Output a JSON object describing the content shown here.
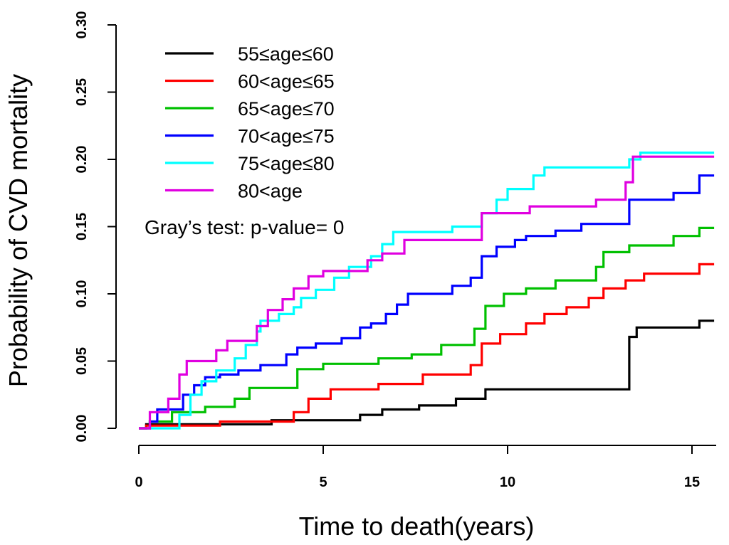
{
  "chart_data": {
    "type": "line",
    "step": true,
    "title": "",
    "xlabel": "Time to death(years)",
    "ylabel": "Probability of CVD mortality",
    "xlim": [
      0,
      15.6
    ],
    "ylim": [
      0,
      0.3
    ],
    "x_ticks": [
      {
        "value": 0,
        "label": "0"
      },
      {
        "value": 5,
        "label": "5"
      },
      {
        "value": 10,
        "label": "10"
      },
      {
        "value": 15,
        "label": "15"
      }
    ],
    "y_ticks": [
      {
        "value": 0.0,
        "label": "0.00"
      },
      {
        "value": 0.05,
        "label": "0.05"
      },
      {
        "value": 0.1,
        "label": "0.10"
      },
      {
        "value": 0.15,
        "label": "0.15"
      },
      {
        "value": 0.2,
        "label": "0.20"
      },
      {
        "value": 0.25,
        "label": "0.25"
      },
      {
        "value": 0.3,
        "label": "0.30"
      }
    ],
    "legend_position": "top-left",
    "annotation": "Gray’s test: p-value= 0",
    "series": [
      {
        "name": "55≤age≤60",
        "color": "#000000",
        "points": [
          [
            0,
            0
          ],
          [
            0.2,
            0
          ],
          [
            0.2,
            0.003
          ],
          [
            3.6,
            0.003
          ],
          [
            3.6,
            0.006
          ],
          [
            6.0,
            0.006
          ],
          [
            6.0,
            0.01
          ],
          [
            6.6,
            0.01
          ],
          [
            6.6,
            0.014
          ],
          [
            7.6,
            0.014
          ],
          [
            7.6,
            0.017
          ],
          [
            8.6,
            0.017
          ],
          [
            8.6,
            0.022
          ],
          [
            9.4,
            0.022
          ],
          [
            9.4,
            0.029
          ],
          [
            13.3,
            0.029
          ],
          [
            13.3,
            0.068
          ],
          [
            13.5,
            0.068
          ],
          [
            13.5,
            0.075
          ],
          [
            15.2,
            0.075
          ],
          [
            15.2,
            0.08
          ],
          [
            15.6,
            0.08
          ]
        ]
      },
      {
        "name": "60<age≤65",
        "color": "#ff0000",
        "points": [
          [
            0,
            0
          ],
          [
            0.2,
            0
          ],
          [
            0.2,
            0.002
          ],
          [
            2.2,
            0.002
          ],
          [
            2.2,
            0.005
          ],
          [
            4.2,
            0.005
          ],
          [
            4.2,
            0.012
          ],
          [
            4.6,
            0.012
          ],
          [
            4.6,
            0.022
          ],
          [
            5.2,
            0.022
          ],
          [
            5.2,
            0.029
          ],
          [
            6.5,
            0.029
          ],
          [
            6.5,
            0.033
          ],
          [
            7.7,
            0.033
          ],
          [
            7.7,
            0.04
          ],
          [
            9.0,
            0.04
          ],
          [
            9.0,
            0.047
          ],
          [
            9.3,
            0.047
          ],
          [
            9.3,
            0.063
          ],
          [
            9.8,
            0.063
          ],
          [
            9.8,
            0.07
          ],
          [
            10.5,
            0.07
          ],
          [
            10.5,
            0.078
          ],
          [
            11.0,
            0.078
          ],
          [
            11.0,
            0.085
          ],
          [
            11.6,
            0.085
          ],
          [
            11.6,
            0.09
          ],
          [
            12.2,
            0.09
          ],
          [
            12.2,
            0.097
          ],
          [
            12.6,
            0.097
          ],
          [
            12.6,
            0.104
          ],
          [
            13.2,
            0.104
          ],
          [
            13.2,
            0.11
          ],
          [
            13.7,
            0.11
          ],
          [
            13.7,
            0.115
          ],
          [
            15.2,
            0.115
          ],
          [
            15.2,
            0.122
          ],
          [
            15.6,
            0.122
          ]
        ]
      },
      {
        "name": "65<age≤70",
        "color": "#00c000",
        "points": [
          [
            0,
            0
          ],
          [
            0.3,
            0
          ],
          [
            0.3,
            0.005
          ],
          [
            0.9,
            0.005
          ],
          [
            0.9,
            0.012
          ],
          [
            1.8,
            0.012
          ],
          [
            1.8,
            0.016
          ],
          [
            2.6,
            0.016
          ],
          [
            2.6,
            0.022
          ],
          [
            3.0,
            0.022
          ],
          [
            3.0,
            0.03
          ],
          [
            4.3,
            0.03
          ],
          [
            4.3,
            0.044
          ],
          [
            5.0,
            0.044
          ],
          [
            5.0,
            0.048
          ],
          [
            6.5,
            0.048
          ],
          [
            6.5,
            0.052
          ],
          [
            7.4,
            0.052
          ],
          [
            7.4,
            0.055
          ],
          [
            8.2,
            0.055
          ],
          [
            8.2,
            0.062
          ],
          [
            9.1,
            0.062
          ],
          [
            9.1,
            0.074
          ],
          [
            9.4,
            0.074
          ],
          [
            9.4,
            0.091
          ],
          [
            9.9,
            0.091
          ],
          [
            9.9,
            0.1
          ],
          [
            10.5,
            0.1
          ],
          [
            10.5,
            0.104
          ],
          [
            11.3,
            0.104
          ],
          [
            11.3,
            0.11
          ],
          [
            12.4,
            0.11
          ],
          [
            12.4,
            0.12
          ],
          [
            12.6,
            0.12
          ],
          [
            12.6,
            0.131
          ],
          [
            13.3,
            0.131
          ],
          [
            13.3,
            0.136
          ],
          [
            14.5,
            0.136
          ],
          [
            14.5,
            0.143
          ],
          [
            15.2,
            0.143
          ],
          [
            15.2,
            0.149
          ],
          [
            15.6,
            0.149
          ]
        ]
      },
      {
        "name": "70<age≤75",
        "color": "#0000ff",
        "points": [
          [
            0,
            0
          ],
          [
            0.3,
            0
          ],
          [
            0.3,
            0.005
          ],
          [
            0.5,
            0.005
          ],
          [
            0.5,
            0.014
          ],
          [
            1.2,
            0.014
          ],
          [
            1.2,
            0.025
          ],
          [
            1.5,
            0.025
          ],
          [
            1.5,
            0.032
          ],
          [
            1.8,
            0.032
          ],
          [
            1.8,
            0.038
          ],
          [
            2.2,
            0.038
          ],
          [
            2.2,
            0.04
          ],
          [
            2.7,
            0.04
          ],
          [
            2.7,
            0.043
          ],
          [
            3.3,
            0.043
          ],
          [
            3.3,
            0.047
          ],
          [
            4.0,
            0.047
          ],
          [
            4.0,
            0.055
          ],
          [
            4.3,
            0.055
          ],
          [
            4.3,
            0.06
          ],
          [
            4.8,
            0.06
          ],
          [
            4.8,
            0.063
          ],
          [
            5.5,
            0.063
          ],
          [
            5.5,
            0.067
          ],
          [
            6.0,
            0.067
          ],
          [
            6.0,
            0.075
          ],
          [
            6.3,
            0.075
          ],
          [
            6.3,
            0.078
          ],
          [
            6.7,
            0.078
          ],
          [
            6.7,
            0.085
          ],
          [
            7.0,
            0.085
          ],
          [
            7.0,
            0.092
          ],
          [
            7.3,
            0.092
          ],
          [
            7.3,
            0.1
          ],
          [
            8.5,
            0.1
          ],
          [
            8.5,
            0.106
          ],
          [
            9.0,
            0.106
          ],
          [
            9.0,
            0.112
          ],
          [
            9.3,
            0.112
          ],
          [
            9.3,
            0.128
          ],
          [
            9.7,
            0.128
          ],
          [
            9.7,
            0.135
          ],
          [
            10.2,
            0.135
          ],
          [
            10.2,
            0.14
          ],
          [
            10.5,
            0.14
          ],
          [
            10.5,
            0.143
          ],
          [
            11.3,
            0.143
          ],
          [
            11.3,
            0.147
          ],
          [
            12.0,
            0.147
          ],
          [
            12.0,
            0.152
          ],
          [
            13.3,
            0.152
          ],
          [
            13.3,
            0.17
          ],
          [
            14.5,
            0.17
          ],
          [
            14.5,
            0.175
          ],
          [
            15.2,
            0.175
          ],
          [
            15.2,
            0.188
          ],
          [
            15.6,
            0.188
          ]
        ]
      },
      {
        "name": "75<age≤80",
        "color": "#00ffff",
        "points": [
          [
            0,
            0
          ],
          [
            1.1,
            0
          ],
          [
            1.1,
            0.01
          ],
          [
            1.4,
            0.01
          ],
          [
            1.4,
            0.025
          ],
          [
            1.7,
            0.025
          ],
          [
            1.7,
            0.035
          ],
          [
            2.1,
            0.035
          ],
          [
            2.1,
            0.043
          ],
          [
            2.6,
            0.043
          ],
          [
            2.6,
            0.052
          ],
          [
            2.9,
            0.052
          ],
          [
            2.9,
            0.062
          ],
          [
            3.2,
            0.062
          ],
          [
            3.2,
            0.072
          ],
          [
            3.3,
            0.072
          ],
          [
            3.3,
            0.08
          ],
          [
            3.8,
            0.08
          ],
          [
            3.8,
            0.085
          ],
          [
            4.2,
            0.085
          ],
          [
            4.2,
            0.09
          ],
          [
            4.4,
            0.09
          ],
          [
            4.4,
            0.097
          ],
          [
            4.8,
            0.097
          ],
          [
            4.8,
            0.103
          ],
          [
            5.3,
            0.103
          ],
          [
            5.3,
            0.112
          ],
          [
            5.7,
            0.112
          ],
          [
            5.7,
            0.12
          ],
          [
            6.3,
            0.12
          ],
          [
            6.3,
            0.128
          ],
          [
            6.6,
            0.128
          ],
          [
            6.6,
            0.137
          ],
          [
            6.9,
            0.137
          ],
          [
            6.9,
            0.146
          ],
          [
            8.5,
            0.146
          ],
          [
            8.5,
            0.15
          ],
          [
            9.3,
            0.15
          ],
          [
            9.3,
            0.16
          ],
          [
            9.7,
            0.16
          ],
          [
            9.7,
            0.17
          ],
          [
            10.0,
            0.17
          ],
          [
            10.0,
            0.178
          ],
          [
            10.7,
            0.178
          ],
          [
            10.7,
            0.188
          ],
          [
            11.0,
            0.188
          ],
          [
            11.0,
            0.194
          ],
          [
            13.3,
            0.194
          ],
          [
            13.3,
            0.2
          ],
          [
            13.6,
            0.2
          ],
          [
            13.6,
            0.205
          ],
          [
            15.6,
            0.205
          ]
        ]
      },
      {
        "name": "80<age",
        "color": "#e000e0",
        "points": [
          [
            0,
            0
          ],
          [
            0.3,
            0
          ],
          [
            0.3,
            0.012
          ],
          [
            0.8,
            0.012
          ],
          [
            0.8,
            0.022
          ],
          [
            1.1,
            0.022
          ],
          [
            1.1,
            0.04
          ],
          [
            1.3,
            0.04
          ],
          [
            1.3,
            0.05
          ],
          [
            2.1,
            0.05
          ],
          [
            2.1,
            0.058
          ],
          [
            2.4,
            0.058
          ],
          [
            2.4,
            0.065
          ],
          [
            3.2,
            0.065
          ],
          [
            3.2,
            0.076
          ],
          [
            3.5,
            0.076
          ],
          [
            3.5,
            0.088
          ],
          [
            3.9,
            0.088
          ],
          [
            3.9,
            0.096
          ],
          [
            4.2,
            0.096
          ],
          [
            4.2,
            0.104
          ],
          [
            4.6,
            0.104
          ],
          [
            4.6,
            0.113
          ],
          [
            5.0,
            0.113
          ],
          [
            5.0,
            0.117
          ],
          [
            6.2,
            0.117
          ],
          [
            6.2,
            0.125
          ],
          [
            6.6,
            0.125
          ],
          [
            6.6,
            0.13
          ],
          [
            7.2,
            0.13
          ],
          [
            7.2,
            0.14
          ],
          [
            9.3,
            0.14
          ],
          [
            9.3,
            0.16
          ],
          [
            10.6,
            0.16
          ],
          [
            10.6,
            0.165
          ],
          [
            12.4,
            0.165
          ],
          [
            12.4,
            0.17
          ],
          [
            13.2,
            0.17
          ],
          [
            13.2,
            0.183
          ],
          [
            13.4,
            0.183
          ],
          [
            13.4,
            0.202
          ],
          [
            15.6,
            0.202
          ]
        ]
      }
    ]
  }
}
